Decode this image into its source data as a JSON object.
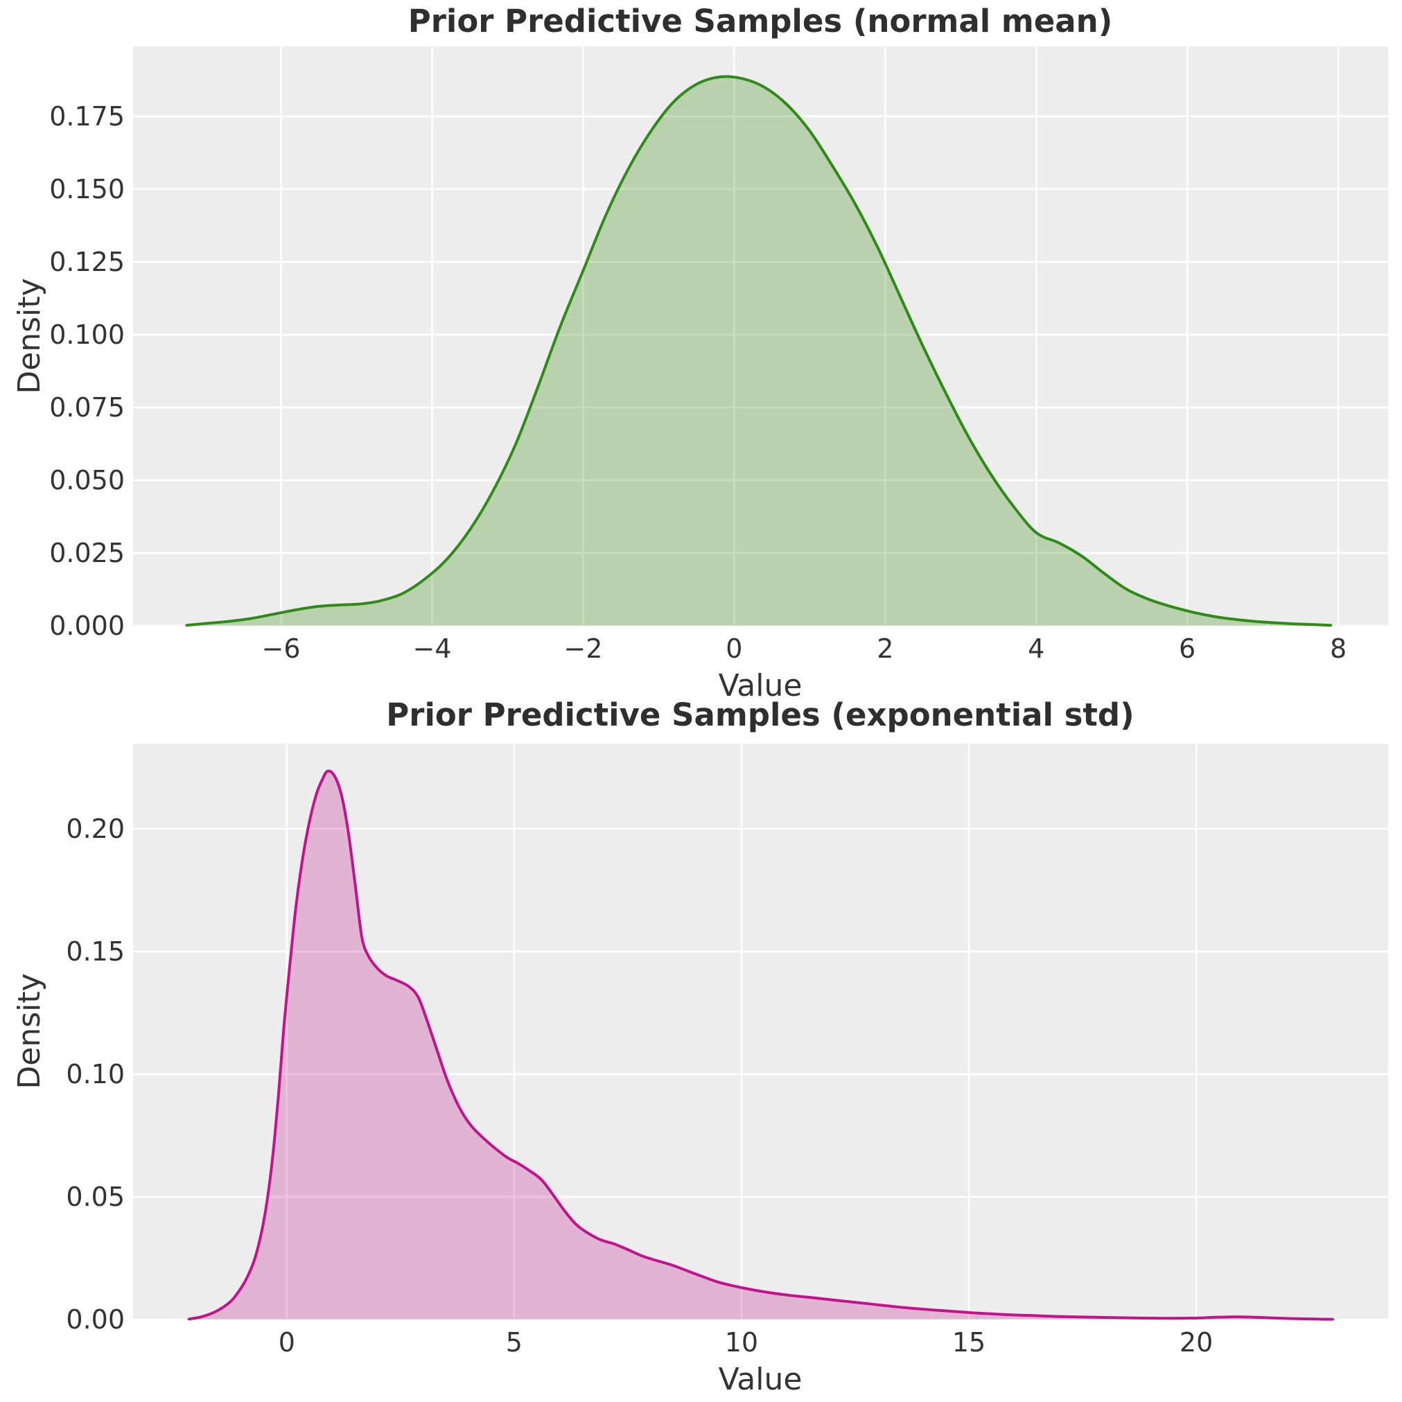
{
  "style": {
    "plot_bg": "#ededed",
    "grid_color": "#ffffff",
    "text_color": "#333333",
    "title_color": "#2f2f2f"
  },
  "chart_data": [
    {
      "type": "area",
      "title": "Prior Predictive Samples (normal mean)",
      "xlabel": "Value",
      "ylabel": "Density",
      "legend": null,
      "grid": true,
      "line_color": "#2e8b17",
      "fill_color": "rgba(70,145,25,0.30)",
      "xlim": [
        -7.96,
        8.66
      ],
      "ylim": [
        0,
        0.199
      ],
      "xticks": {
        "values": [
          -6,
          -4,
          -2,
          0,
          2,
          4,
          6,
          8
        ],
        "labels": [
          "−6",
          "−4",
          "−2",
          "0",
          "2",
          "4",
          "6",
          "8"
        ]
      },
      "yticks": {
        "values": [
          0,
          0.025,
          0.05,
          0.075,
          0.1,
          0.125,
          0.15,
          0.175
        ],
        "labels": [
          "0.000",
          "0.025",
          "0.050",
          "0.075",
          "0.100",
          "0.125",
          "0.150",
          "0.175"
        ]
      },
      "points": {
        "x": [
          -7.25,
          -7.0,
          -6.7,
          -6.4,
          -6.1,
          -5.8,
          -5.5,
          -5.2,
          -4.95,
          -4.7,
          -4.4,
          -4.1,
          -3.8,
          -3.5,
          -3.2,
          -2.9,
          -2.6,
          -2.3,
          -2.0,
          -1.7,
          -1.4,
          -1.1,
          -0.8,
          -0.5,
          -0.2,
          0.1,
          0.4,
          0.7,
          1.0,
          1.3,
          1.6,
          1.9,
          2.2,
          2.5,
          2.8,
          3.1,
          3.4,
          3.7,
          4.0,
          4.3,
          4.6,
          4.9,
          5.2,
          5.5,
          5.8,
          6.1,
          6.4,
          6.7,
          7.0,
          7.4,
          7.9
        ],
        "density": [
          0.0002,
          0.0008,
          0.0015,
          0.0025,
          0.004,
          0.0055,
          0.0067,
          0.0072,
          0.0075,
          0.0085,
          0.011,
          0.016,
          0.023,
          0.033,
          0.046,
          0.062,
          0.082,
          0.103,
          0.122,
          0.141,
          0.157,
          0.17,
          0.18,
          0.186,
          0.1885,
          0.188,
          0.185,
          0.179,
          0.17,
          0.158,
          0.145,
          0.13,
          0.113,
          0.096,
          0.08,
          0.065,
          0.052,
          0.041,
          0.032,
          0.0285,
          0.024,
          0.018,
          0.0125,
          0.009,
          0.0065,
          0.0045,
          0.003,
          0.002,
          0.0013,
          0.0007,
          0.0002
        ]
      }
    },
    {
      "type": "area",
      "title": "Prior Predictive Samples (exponential std)",
      "xlabel": "Value",
      "ylabel": "Density",
      "legend": null,
      "grid": true,
      "line_color": "#c2138c",
      "fill_color": "rgba(194,19,140,0.26)",
      "xlim": [
        -3.38,
        24.22
      ],
      "ylim": [
        0,
        0.2347
      ],
      "xticks": {
        "values": [
          0,
          5,
          10,
          15,
          20
        ],
        "labels": [
          "0",
          "5",
          "10",
          "15",
          "20"
        ]
      },
      "yticks": {
        "values": [
          0,
          0.05,
          0.1,
          0.15,
          0.2
        ],
        "labels": [
          "0.00",
          "0.05",
          "0.10",
          "0.15",
          "0.20"
        ]
      },
      "points": {
        "x": [
          -2.15,
          -1.9,
          -1.65,
          -1.4,
          -1.2,
          -1.0,
          -0.85,
          -0.7,
          -0.55,
          -0.42,
          -0.3,
          -0.18,
          -0.06,
          0.06,
          0.2,
          0.35,
          0.5,
          0.65,
          0.78,
          0.9,
          1.05,
          1.2,
          1.35,
          1.5,
          1.65,
          1.8,
          2.0,
          2.2,
          2.45,
          2.7,
          2.9,
          3.1,
          3.3,
          3.5,
          3.7,
          3.9,
          4.1,
          4.35,
          4.6,
          4.85,
          5.1,
          5.35,
          5.6,
          5.85,
          6.1,
          6.35,
          6.6,
          6.9,
          7.2,
          7.5,
          7.8,
          8.1,
          8.5,
          9.0,
          9.5,
          10.0,
          10.5,
          11.0,
          11.6,
          12.2,
          12.8,
          13.4,
          14.0,
          14.6,
          15.2,
          15.8,
          16.4,
          17.0,
          17.6,
          18.2,
          18.8,
          19.4,
          20.0,
          20.4,
          20.8,
          21.2,
          21.6,
          22.1,
          22.6,
          23.0
        ],
        "density": [
          0.0002,
          0.001,
          0.0025,
          0.005,
          0.008,
          0.013,
          0.018,
          0.025,
          0.036,
          0.05,
          0.068,
          0.092,
          0.12,
          0.143,
          0.168,
          0.188,
          0.203,
          0.214,
          0.22,
          0.2235,
          0.2215,
          0.214,
          0.199,
          0.178,
          0.156,
          0.148,
          0.143,
          0.14,
          0.138,
          0.1355,
          0.131,
          0.121,
          0.11,
          0.099,
          0.09,
          0.083,
          0.078,
          0.0735,
          0.0695,
          0.066,
          0.0635,
          0.0605,
          0.057,
          0.051,
          0.0445,
          0.039,
          0.0355,
          0.0325,
          0.0308,
          0.0285,
          0.026,
          0.0242,
          0.022,
          0.0185,
          0.0152,
          0.013,
          0.0113,
          0.01,
          0.0088,
          0.0076,
          0.0064,
          0.0052,
          0.0042,
          0.0034,
          0.0026,
          0.002,
          0.0016,
          0.0012,
          0.001,
          0.0008,
          0.0006,
          0.0005,
          0.0006,
          0.0009,
          0.0011,
          0.001,
          0.0007,
          0.0004,
          0.0002,
          0.0001
        ]
      }
    }
  ]
}
